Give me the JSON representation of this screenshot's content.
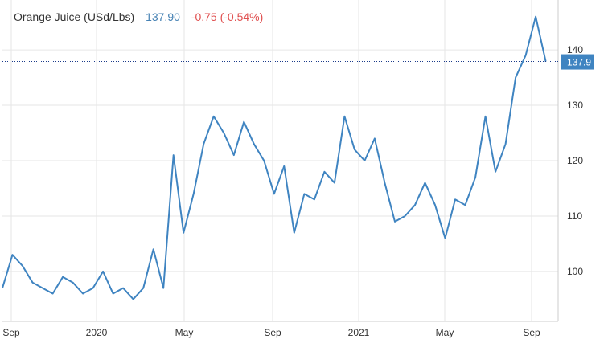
{
  "header": {
    "title": "Orange Juice (USd/Lbs)",
    "price": "137.90",
    "change": "-0.75 (-0.54%)"
  },
  "colors": {
    "line": "#3f84c1",
    "price": "#4682b4",
    "change_negative": "#e05050",
    "grid": "#e6e6e6",
    "badge": "#3f84c1",
    "last_line": "#1a3a8a"
  },
  "chart_data": {
    "type": "line",
    "title": "Orange Juice (USd/Lbs)",
    "xlabel": "",
    "ylabel": "",
    "ylim": [
      91,
      149
    ],
    "yticks": [
      100,
      110,
      120,
      130,
      140
    ],
    "xticks": [
      "Sep",
      "2020",
      "May",
      "Sep",
      "2021",
      "May",
      "Sep"
    ],
    "last_value": 137.9,
    "last_label": "137.9",
    "grid": true,
    "series": [
      {
        "x": [
          "2019-08-26",
          "2019-09-09",
          "2019-09-23",
          "2019-10-07",
          "2019-10-21",
          "2019-11-04",
          "2019-11-18",
          "2019-12-02",
          "2019-12-16",
          "2019-12-30",
          "2020-01-13",
          "2020-01-27",
          "2020-02-10",
          "2020-02-24",
          "2020-03-09",
          "2020-03-23",
          "2020-04-06",
          "2020-04-20",
          "2020-05-04",
          "2020-05-18",
          "2020-06-01",
          "2020-06-15",
          "2020-06-29",
          "2020-07-13",
          "2020-07-27",
          "2020-08-10",
          "2020-08-24",
          "2020-09-07",
          "2020-09-21",
          "2020-10-05",
          "2020-10-19",
          "2020-11-02",
          "2020-11-16",
          "2020-11-30",
          "2020-12-14",
          "2020-12-28",
          "2021-01-11",
          "2021-01-25",
          "2021-02-08",
          "2021-02-22",
          "2021-03-08",
          "2021-03-22",
          "2021-04-05",
          "2021-04-19",
          "2021-05-03",
          "2021-05-17",
          "2021-05-31",
          "2021-06-14",
          "2021-06-28",
          "2021-07-12",
          "2021-07-26",
          "2021-08-09",
          "2021-08-23",
          "2021-09-06",
          "2021-09-20"
        ],
        "y": [
          97,
          103,
          101,
          98,
          97,
          96,
          99,
          98,
          96,
          97,
          100,
          96,
          97,
          95,
          97,
          104,
          97,
          121,
          107,
          114,
          123,
          128,
          125,
          121,
          127,
          123,
          120,
          114,
          119,
          107,
          114,
          113,
          118,
          116,
          128,
          122,
          120,
          124,
          116,
          109,
          110,
          112,
          116,
          112,
          106,
          113,
          112,
          117,
          128,
          118,
          123,
          135,
          139,
          146,
          137.9
        ]
      }
    ]
  }
}
